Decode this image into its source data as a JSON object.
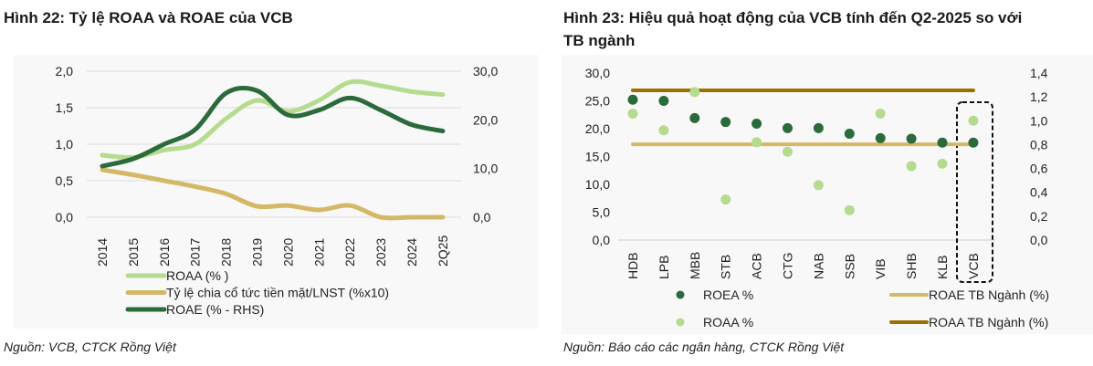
{
  "left": {
    "title": "Hình 22: Tỷ lệ ROAA và ROAE của VCB",
    "source": "Nguồn: VCB, CTCK Rồng Việt"
  },
  "right": {
    "title_line1": "Hình 23: Hiệu quả hoạt động của VCB tính đến Q2-2025 so với",
    "title_line2": "TB ngành",
    "source": "Nguồn: Báo cáo các ngân hàng, CTCK Rồng Việt"
  },
  "chart_data": [
    {
      "type": "line",
      "title": "Tỷ lệ ROAA và ROAE của VCB",
      "categories": [
        "2014",
        "2015",
        "2016",
        "2017",
        "2018",
        "2019",
        "2020",
        "2021",
        "2022",
        "2023",
        "2024",
        "2Q25"
      ],
      "ylim": [
        0,
        2.0
      ],
      "y_ticks": [
        "0,0",
        "0,5",
        "1,0",
        "1,5",
        "2,0"
      ],
      "y2lim": [
        0,
        30
      ],
      "y2_ticks": [
        "0,0",
        "10,0",
        "20,0",
        "30,0"
      ],
      "grid": true,
      "legend_position": "bottom",
      "series": [
        {
          "name": "ROAA (% )",
          "axis": "left",
          "color": "#b5dc8e",
          "values": [
            0.85,
            0.82,
            0.92,
            1.0,
            1.35,
            1.6,
            1.45,
            1.6,
            1.85,
            1.8,
            1.72,
            1.68
          ]
        },
        {
          "name": "Tỷ lệ chia cổ tức tiền mặt/LNST (%x10)",
          "axis": "left",
          "color": "#d4b866",
          "values": [
            0.65,
            0.58,
            0.5,
            0.42,
            0.32,
            0.15,
            0.16,
            0.1,
            0.16,
            0.0,
            0.0,
            0.0
          ]
        },
        {
          "name": "ROAE (% - RHS)",
          "axis": "right",
          "color": "#2b6a3b",
          "values": [
            10.5,
            12,
            15,
            18,
            25.5,
            26,
            21,
            22,
            24.5,
            22,
            19,
            17.7
          ]
        }
      ]
    },
    {
      "type": "scatter",
      "title": "Hiệu quả hoạt động của VCB tính đến Q2-2025 so với TB ngành",
      "categories": [
        "HDB",
        "LPB",
        "MBB",
        "STB",
        "ACB",
        "CTG",
        "NAB",
        "SSB",
        "VIB",
        "SHB",
        "KLB",
        "VCB"
      ],
      "highlight": "VCB",
      "ylim": [
        0,
        30
      ],
      "y_ticks": [
        "0,0",
        "5,0",
        "10,0",
        "15,0",
        "20,0",
        "25,0",
        "30,0"
      ],
      "y2lim": [
        0,
        1.4
      ],
      "y2_ticks": [
        "0,0",
        "0,2",
        "0,4",
        "0,6",
        "0,8",
        "1,0",
        "1,2",
        "1,4"
      ],
      "legend_position": "bottom",
      "series": [
        {
          "name": "ROEA %",
          "axis": "left",
          "kind": "dot",
          "color": "#2b6a3b",
          "values": [
            25.2,
            25.0,
            21.9,
            21.2,
            20.9,
            20.1,
            20.1,
            19.1,
            18.3,
            18.2,
            17.5,
            17.5
          ]
        },
        {
          "name": "ROAA %",
          "axis": "right",
          "kind": "dot",
          "color": "#b5dc8e",
          "values": [
            1.06,
            0.92,
            1.24,
            0.34,
            0.82,
            0.74,
            0.46,
            0.25,
            1.06,
            0.62,
            0.64,
            1.0
          ]
        },
        {
          "name": "ROAE TB Ngành (%)",
          "axis": "left",
          "kind": "hline",
          "color": "#d4b866",
          "value": 17.2
        },
        {
          "name": "ROAA TB Ngành (%)",
          "axis": "right",
          "kind": "hline",
          "color": "#9a7000",
          "value": 1.255
        }
      ]
    }
  ]
}
